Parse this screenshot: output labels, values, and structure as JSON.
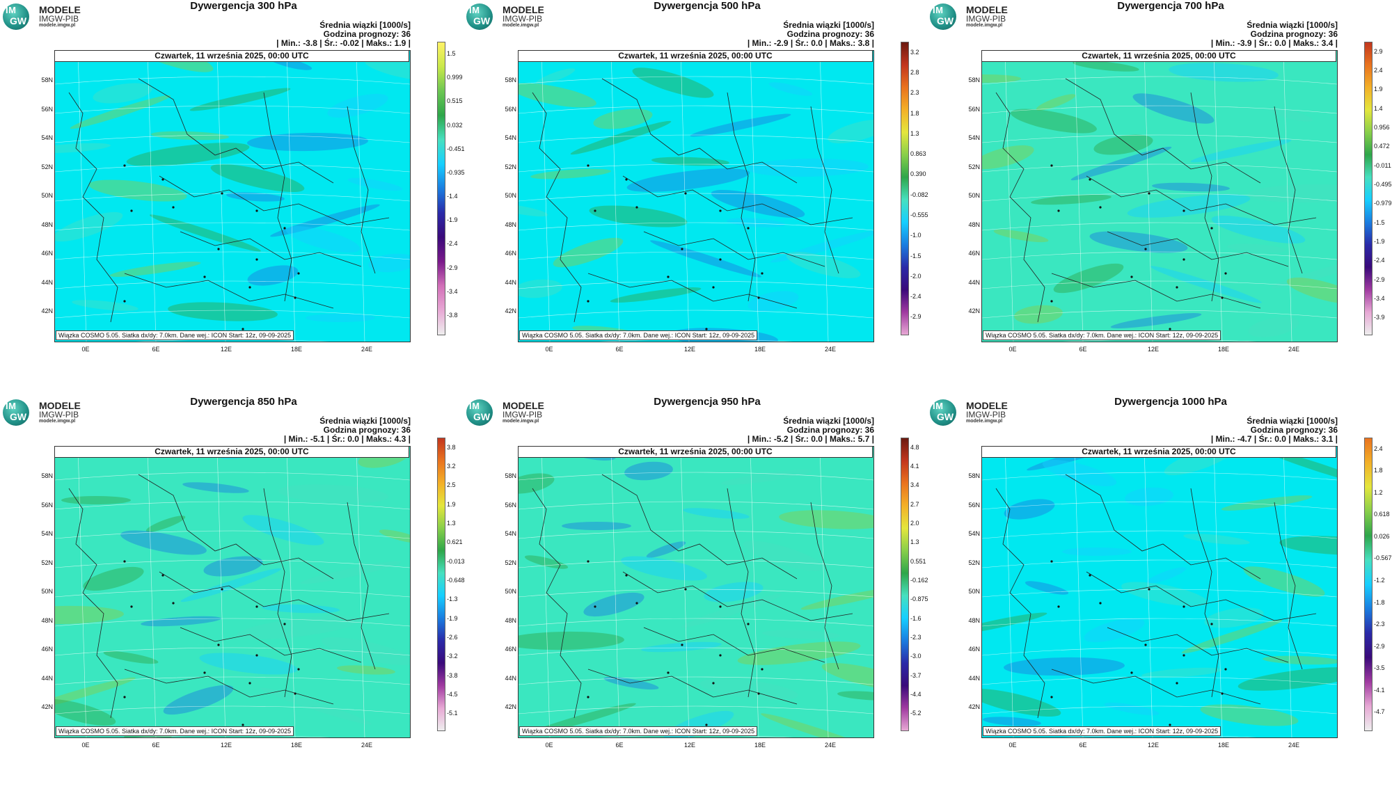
{
  "logo": {
    "im": "IM",
    "gw": "GW",
    "line1": "MODELE",
    "line2": "IMGW-PIB",
    "line3": "modele.imgw.pl"
  },
  "common": {
    "subtitle": "Średnia wiązki [1000/s]",
    "forecast": "Godzina prognozy: 36",
    "date": "Czwartek, 11 września 2025, 00:00 UTC",
    "footer": "Wiązka COSMO 5.05. Siatka dx/dy: 7.0km. Dane wej.: ICON Start: 12z, 09-09-2025",
    "lat_ticks": [
      "58N",
      "56N",
      "54N",
      "52N",
      "50N",
      "48N",
      "46N",
      "44N",
      "42N"
    ],
    "lon_ticks": [
      "0E",
      "6E",
      "12E",
      "18E",
      "24E"
    ]
  },
  "panels": [
    {
      "title": "Dywergencja 300 hPa",
      "stats": "| Min.:     -3.8 | Śr.:   -0.02 | Maks.:      1.9 |",
      "bg": "#00e8f0",
      "colorbar": [
        "1.5",
        "0.999",
        "0.515",
        "0.032",
        "-0.451",
        "-0.935",
        "-1.4",
        "-1.9",
        "-2.4",
        "-2.9",
        "-3.4",
        "-3.8"
      ],
      "gradient": [
        "#fff266",
        "#c9e84a",
        "#6cc653",
        "#2ea64a",
        "#47e0c0",
        "#16cfff",
        "#1a7de0",
        "#2a2aa8",
        "#3a0a7a",
        "#7a1a8a",
        "#d270b8",
        "#e7a8d4",
        "#eeeeee"
      ]
    },
    {
      "title": "Dywergencja 500 hPa",
      "stats": "| Min.:     -2.9 | Śr.:     0.0 | Maks.:      3.8 |",
      "bg": "#00e8f0",
      "colorbar": [
        "3.2",
        "2.8",
        "2.3",
        "1.8",
        "1.3",
        "0.863",
        "0.390",
        "-0.082",
        "-0.555",
        "-1.0",
        "-1.5",
        "-2.0",
        "-2.4",
        "-2.9"
      ],
      "gradient": [
        "#6b1a10",
        "#c2361e",
        "#e9731f",
        "#f3b028",
        "#e4e63d",
        "#88cf4a",
        "#2ea64a",
        "#47e0c0",
        "#16cfff",
        "#1a7de0",
        "#2a2aa8",
        "#3a0a7a",
        "#a03aa0",
        "#e7a8d4"
      ]
    },
    {
      "title": "Dywergencja 700 hPa",
      "stats": "| Min.:     -3.9 | Śr.:     0.0 | Maks.:      3.4 |",
      "bg": "#3ae7c0",
      "colorbar": [
        "2.9",
        "2.4",
        "1.9",
        "1.4",
        "0.956",
        "0.472",
        "-0.011",
        "-0.495",
        "-0.979",
        "-1.5",
        "-1.9",
        "-2.4",
        "-2.9",
        "-3.4",
        "-3.9"
      ],
      "gradient": [
        "#c2361e",
        "#e9731f",
        "#f3b028",
        "#e4e63d",
        "#88cf4a",
        "#2ea64a",
        "#47e0c0",
        "#16cfff",
        "#1a7de0",
        "#2a2aa8",
        "#3a0a7a",
        "#a03aa0",
        "#e7a8d4",
        "#eeeeee"
      ]
    },
    {
      "title": "Dywergencja 850 hPa",
      "stats": "| Min.:     -5.1 | Śr.:     0.0 | Maks.:      4.3 |",
      "bg": "#3ae7c0",
      "colorbar": [
        "3.8",
        "3.2",
        "2.5",
        "1.9",
        "1.3",
        "0.621",
        "-0.013",
        "-0.648",
        "-1.3",
        "-1.9",
        "-2.6",
        "-3.2",
        "-3.8",
        "-4.5",
        "-5.1"
      ],
      "gradient": [
        "#c2361e",
        "#e9731f",
        "#f3b028",
        "#e4e63d",
        "#88cf4a",
        "#2ea64a",
        "#47e0c0",
        "#16cfff",
        "#1a7de0",
        "#2a2aa8",
        "#3a0a7a",
        "#a03aa0",
        "#e7a8d4",
        "#eeeeee"
      ]
    },
    {
      "title": "Dywergencja 950 hPa",
      "stats": "| Min.:     -5.2 | Śr.:     0.0 | Maks.:      5.7 |",
      "bg": "#3ae7c0",
      "colorbar": [
        "4.8",
        "4.1",
        "3.4",
        "2.7",
        "2.0",
        "1.3",
        "0.551",
        "-0.162",
        "-0.875",
        "-1.6",
        "-2.3",
        "-3.0",
        "-3.7",
        "-4.4",
        "-5.2"
      ],
      "gradient": [
        "#6b1a10",
        "#c2361e",
        "#e9731f",
        "#f3b028",
        "#e4e63d",
        "#88cf4a",
        "#2ea64a",
        "#47e0c0",
        "#16cfff",
        "#1a7de0",
        "#2a2aa8",
        "#3a0a7a",
        "#a03aa0",
        "#e7a8d4"
      ]
    },
    {
      "title": "Dywergencja 1000 hPa",
      "stats": "| Min.:     -4.7 | Śr.:     0.0 | Maks.:      3.1 |",
      "bg": "#00e8f0",
      "colorbar": [
        "2.4",
        "1.8",
        "1.2",
        "0.618",
        "0.026",
        "-0.567",
        "-1.2",
        "-1.8",
        "-2.3",
        "-2.9",
        "-3.5",
        "-4.1",
        "-4.7"
      ],
      "gradient": [
        "#e9731f",
        "#f3b028",
        "#e4e63d",
        "#88cf4a",
        "#2ea64a",
        "#47e0c0",
        "#16cfff",
        "#1a7de0",
        "#2a2aa8",
        "#3a0a7a",
        "#a03aa0",
        "#e7a8d4",
        "#eeeeee"
      ]
    }
  ]
}
